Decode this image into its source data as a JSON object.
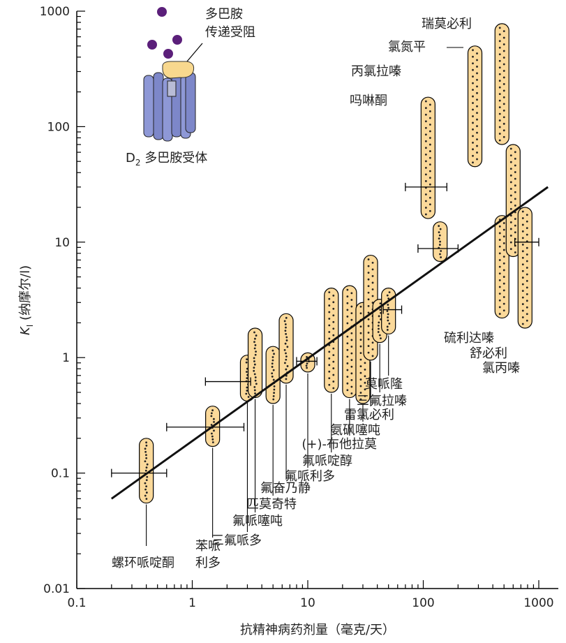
{
  "chart_data": {
    "type": "scatter",
    "title": "",
    "xlabel": "抗精神病药剂量（毫克/天）",
    "ylabel_main": "K",
    "ylabel_sub": "I",
    "ylabel_unit": "(纳摩尔/l)",
    "x_scale": "log",
    "y_scale": "log",
    "xlim": [
      0.1,
      1500
    ],
    "ylim": [
      0.01,
      1000
    ],
    "x_ticks": [
      0.1,
      1,
      10,
      100,
      1000
    ],
    "x_tick_labels": [
      "0.1",
      "1",
      "10",
      "100",
      "1000"
    ],
    "y_ticks": [
      0.01,
      0.1,
      1,
      10,
      100,
      1000
    ],
    "y_tick_labels": [
      "0.01",
      "0.1",
      "1",
      "10",
      "100",
      "1000"
    ],
    "regression_line": {
      "x": [
        0.2,
        1200
      ],
      "y": [
        0.06,
        30
      ]
    },
    "drugs": [
      {
        "name": "螺环哌啶酮",
        "dose": 0.4,
        "ki_min": 0.055,
        "ki_max": 0.2,
        "dose_range": [
          0.2,
          0.6
        ],
        "ki_marker": 0.1
      },
      {
        "name": "苯哌利多",
        "dose": 1.5,
        "ki_min": 0.17,
        "ki_max": 0.38,
        "dose_range": [
          0.6,
          2.8
        ],
        "ki_marker": 0.25
      },
      {
        "name": "三氟哌多",
        "dose": 3,
        "ki_min": 0.42,
        "ki_max": 1.05
      },
      {
        "name": "氟哌噻吨",
        "dose": 3.5,
        "ki_min": 0.45,
        "ki_max": 1.8,
        "dose_range": [
          1.3,
          3.2
        ],
        "ki_marker": 0.62
      },
      {
        "name": "匹莫奇特",
        "dose": 5,
        "ki_min": 0.4,
        "ki_max": 1.25
      },
      {
        "name": "氟奋乃静",
        "dose": 6.5,
        "ki_min": 0.6,
        "ki_max": 2.4
      },
      {
        "name": "氟哌利多",
        "dose": 10,
        "ki_min": 0.75,
        "ki_max": 1.1,
        "dose_range": [
          8,
          12
        ],
        "ki_marker": 0.93
      },
      {
        "name": "氟哌啶醇",
        "dose": 16,
        "ki_min": 0.5,
        "ki_max": 4
      },
      {
        "name": "(+)-布他拉莫",
        "dose": 23,
        "ki_min": 0.45,
        "ki_max": 4.2
      },
      {
        "name": "氨砜噻吨",
        "dose": 30,
        "ki_min": 0.4,
        "ki_max": 3
      },
      {
        "name": "雷氯必利",
        "dose": 35,
        "ki_min": 0.95,
        "ki_max": 7.7
      },
      {
        "name": "三氟拉嗪",
        "dose": 42,
        "ki_min": 1.35,
        "ki_max": 3.2
      },
      {
        "name": "莫哌隆",
        "dose": 50,
        "ki_min": 1.6,
        "ki_max": 4,
        "dose_range": [
          45,
          65
        ],
        "ki_marker": 2.6
      },
      {
        "name": "吗啉酮",
        "dose": 110,
        "ki_min": 16,
        "ki_max": 180,
        "dose_range": [
          70,
          160
        ],
        "ki_marker": 30,
        "label_align": "end"
      },
      {
        "name": "丙氯拉嗪",
        "dose": 140,
        "ki_min": 6.8,
        "ki_max": 15,
        "dose_range": [
          90,
          200
        ],
        "ki_marker": 8.8,
        "label_align": "end"
      },
      {
        "name": "氯氮平",
        "dose": 280,
        "ki_min": 45,
        "ki_max": 500,
        "label_align": "end"
      },
      {
        "name": "瑞莫必利",
        "dose": 480,
        "ki_min": 70,
        "ki_max": 780,
        "label_align": "end"
      },
      {
        "name": "硫利达嗪",
        "dose": 480,
        "ki_min": 2.2,
        "ki_max": 17
      },
      {
        "name": "舒必利",
        "dose": 600,
        "ki_min": 7.5,
        "ki_max": 70
      },
      {
        "name": "氯丙嗪",
        "dose": 760,
        "ki_min": 1.8,
        "ki_max": 20,
        "dose_range": [
          620,
          1000
        ],
        "ki_marker": 10
      }
    ]
  },
  "inset": {
    "blocking_label_line1": "多巴胺",
    "blocking_label_line2": "传递受阻",
    "receptor_label_main": "D",
    "receptor_label_sub": "2",
    "receptor_label_rest": "多巴胺受体"
  },
  "colors": {
    "bar_fill": "#fbd99a",
    "bar_stroke": "#000000",
    "dot": "#222222",
    "receptor": "#8e98d6",
    "receptor_dark": "#5a63a8",
    "dopamine": "#5b1f7a",
    "blocker": "#f8d88e"
  }
}
